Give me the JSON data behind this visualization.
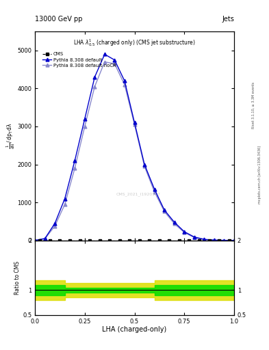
{
  "title_left": "13000 GeV pp",
  "title_right": "Jets",
  "plot_title": "LHA $\\lambda^1_{0.5}$ (charged only) (CMS jet substructure)",
  "watermark": "CMS_2021_I1920187",
  "rivet_text": "Rivet 3.1.10, ≥ 3.3M events",
  "arxiv_text": "mcplots.cern.ch [arXiv:1306.3436]",
  "ylabel_ratio": "Ratio to CMS",
  "xlabel": "LHA (charged-only)",
  "xlim": [
    0,
    1
  ],
  "ylim_main": [
    0,
    5500
  ],
  "ylim_ratio": [
    0.5,
    2.0
  ],
  "pythia_default_x": [
    0.0,
    0.05,
    0.1,
    0.15,
    0.2,
    0.25,
    0.3,
    0.35,
    0.4,
    0.45,
    0.5,
    0.55,
    0.6,
    0.65,
    0.7,
    0.75,
    0.8,
    0.85,
    0.9,
    0.95,
    1.0
  ],
  "pythia_default_y": [
    0.0,
    50,
    450,
    1100,
    2100,
    3200,
    4300,
    4900,
    4750,
    4200,
    3100,
    2000,
    1350,
    800,
    480,
    230,
    90,
    28,
    8,
    1,
    0.0
  ],
  "pythia_nocr_x": [
    0.0,
    0.05,
    0.1,
    0.15,
    0.2,
    0.25,
    0.3,
    0.35,
    0.4,
    0.45,
    0.5,
    0.55,
    0.6,
    0.65,
    0.7,
    0.75,
    0.8,
    0.85,
    0.9,
    0.95,
    1.0
  ],
  "pythia_nocr_y": [
    0.0,
    40,
    380,
    950,
    1900,
    3000,
    4050,
    4700,
    4650,
    4100,
    3050,
    1950,
    1280,
    760,
    440,
    210,
    75,
    22,
    6,
    1,
    0.0
  ],
  "ratio_x_edges": [
    0.0,
    0.05,
    0.1,
    0.15,
    0.2,
    0.3,
    0.4,
    0.5,
    0.6,
    0.65,
    0.7,
    0.8,
    0.9,
    1.0
  ],
  "ratio_green_lo": [
    0.9,
    0.9,
    0.9,
    0.95,
    0.95,
    0.95,
    0.95,
    0.95,
    0.9,
    0.9,
    0.9,
    0.9,
    0.9,
    0.9
  ],
  "ratio_green_hi": [
    1.1,
    1.1,
    1.1,
    1.05,
    1.05,
    1.05,
    1.05,
    1.05,
    1.1,
    1.1,
    1.1,
    1.1,
    1.1,
    1.1
  ],
  "ratio_yellow_lo": [
    0.8,
    0.8,
    0.8,
    0.85,
    0.85,
    0.85,
    0.85,
    0.85,
    0.8,
    0.8,
    0.8,
    0.8,
    0.8,
    0.8
  ],
  "ratio_yellow_hi": [
    1.2,
    1.2,
    1.2,
    1.15,
    1.15,
    1.15,
    1.15,
    1.15,
    1.2,
    1.2,
    1.2,
    1.2,
    1.2,
    1.2
  ],
  "color_default": "#0000cc",
  "color_nocr": "#8888cc",
  "color_cms": "#000000",
  "color_green": "#00dd00",
  "color_yellow": "#dddd00",
  "yticks_main": [
    0,
    1000,
    2000,
    3000,
    4000,
    5000
  ],
  "ytick_labels_main": [
    "0",
    "1000",
    "2000",
    "3000",
    "4000",
    "5000"
  ],
  "xticks": [
    0.0,
    0.25,
    0.5,
    0.75,
    1.0
  ],
  "ratio_yticks": [
    0.5,
    1.0,
    2.0
  ],
  "ratio_ytick_labels": [
    "0.5",
    "1",
    "2"
  ]
}
